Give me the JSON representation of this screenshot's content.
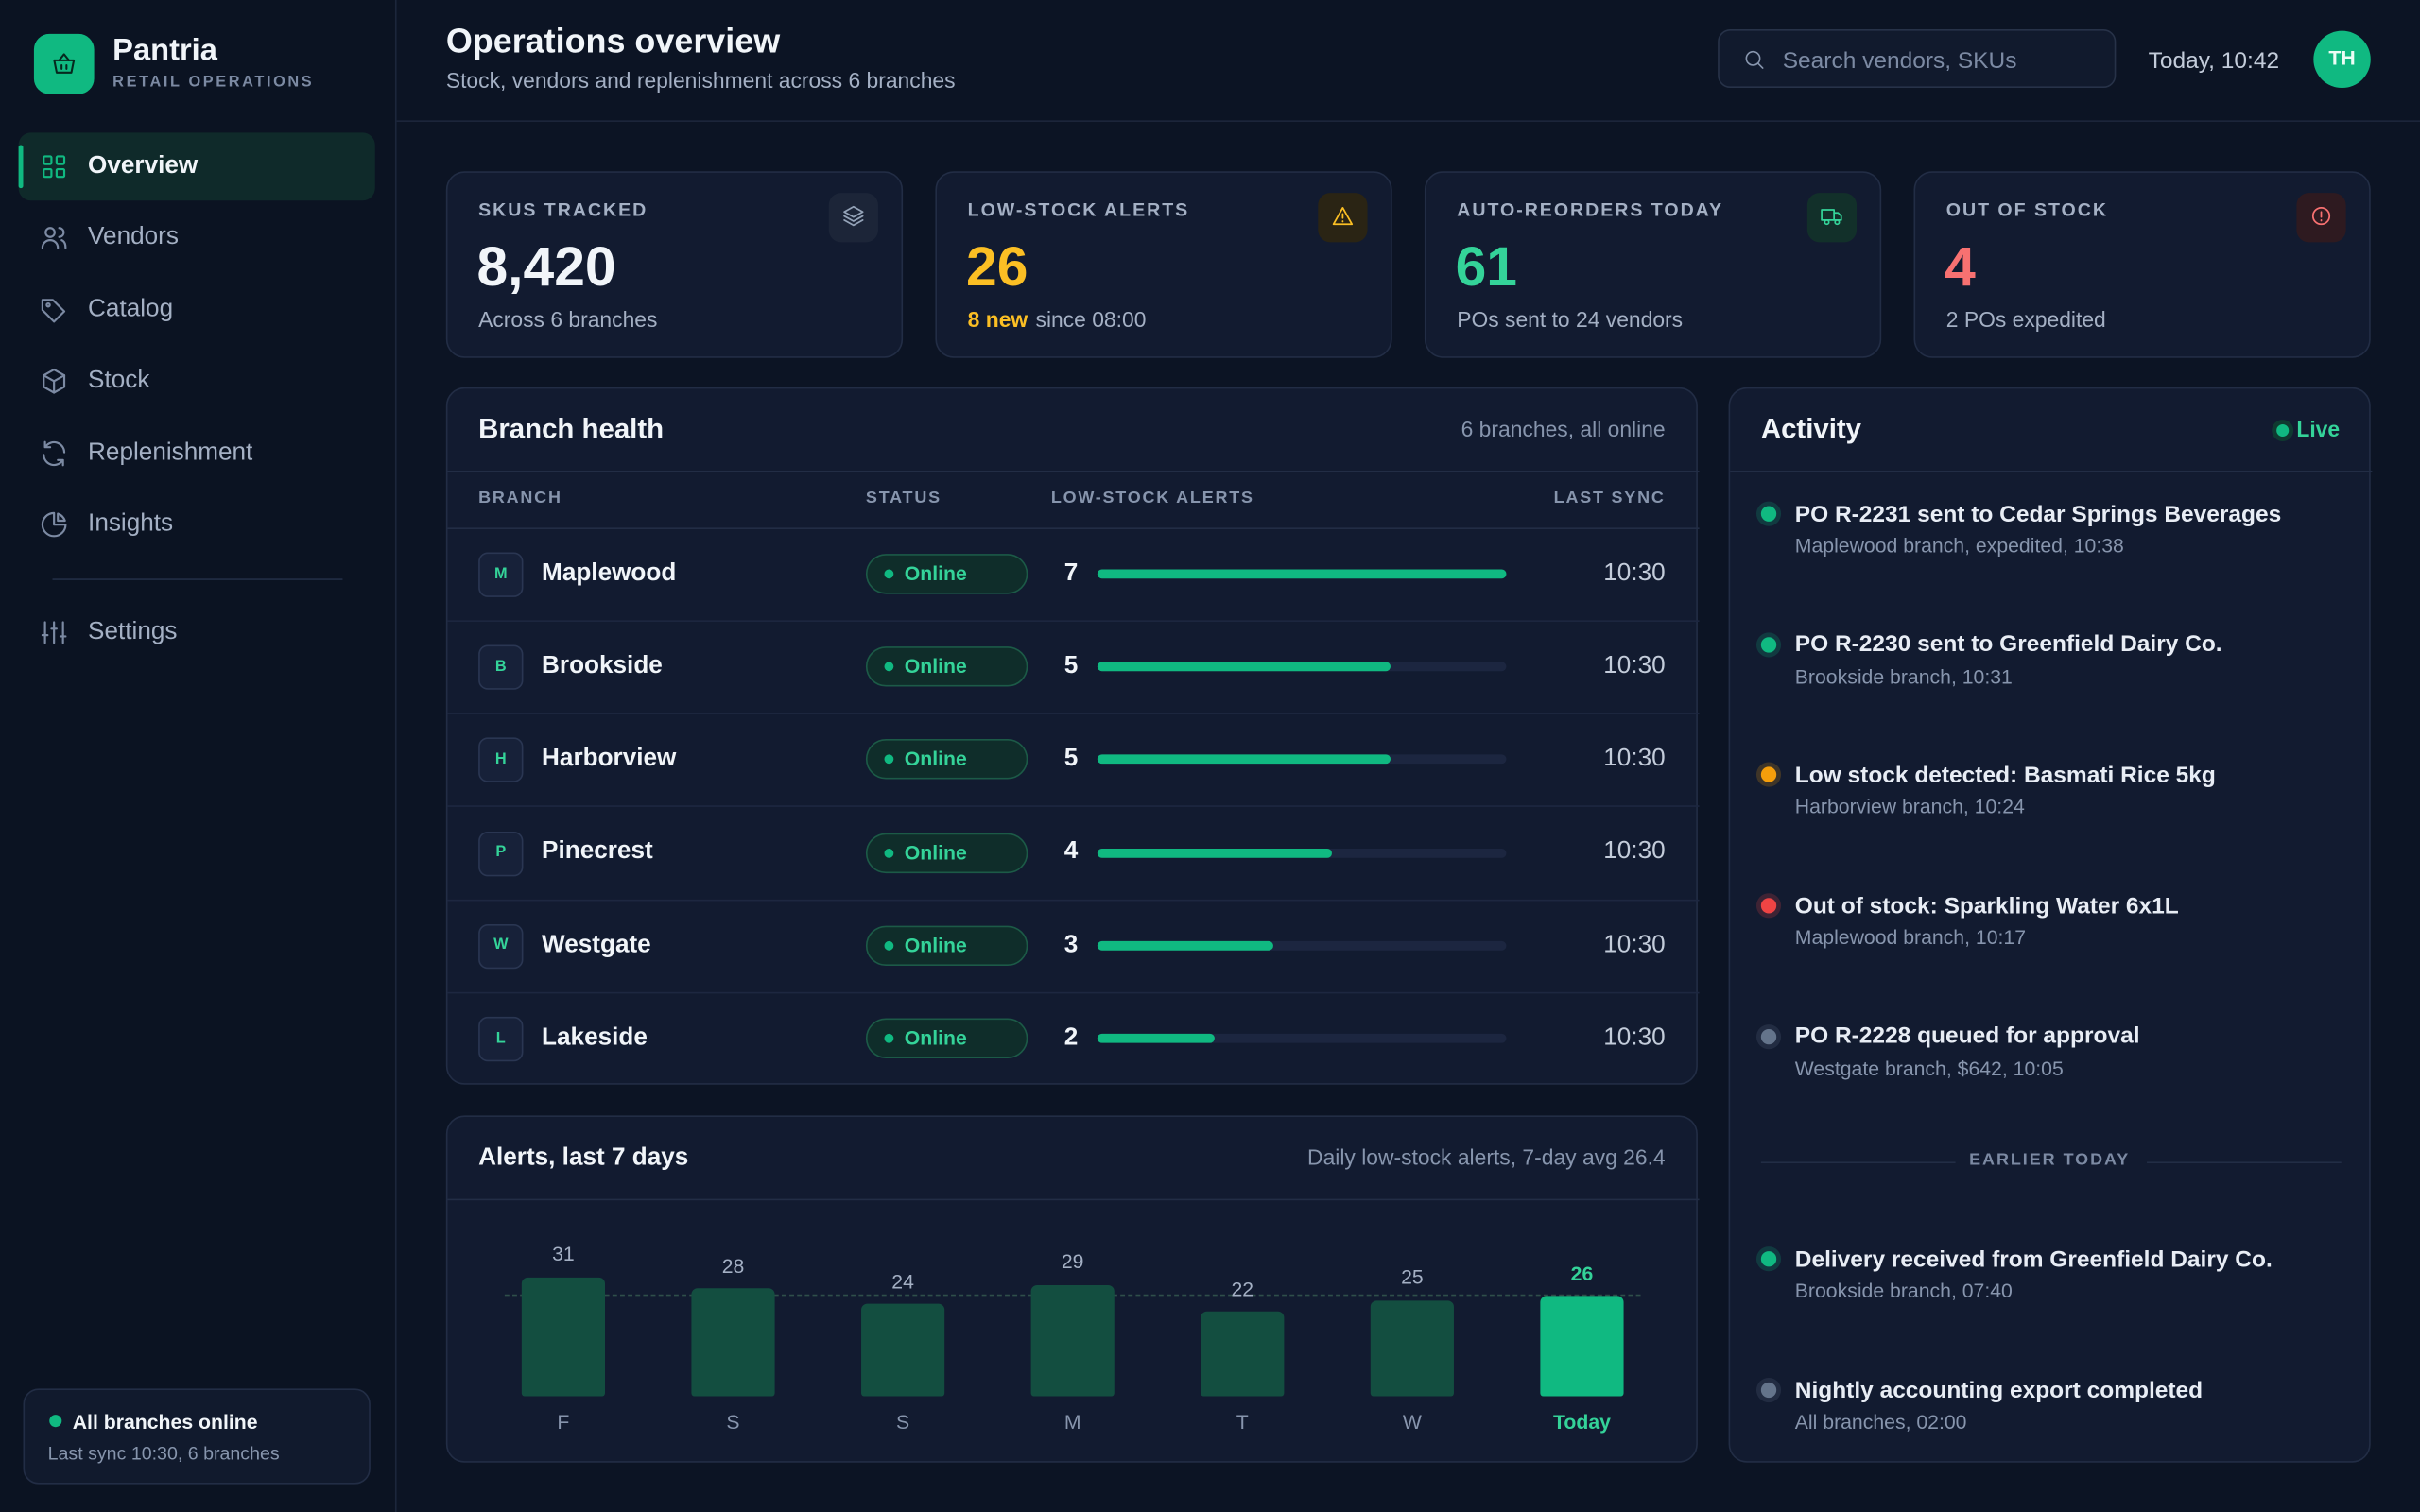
{
  "sidebar": {
    "brand": "Pantria",
    "tagline": "RETAIL OPERATIONS",
    "nav": [
      "Overview",
      "Vendors",
      "Catalog",
      "Stock",
      "Replenishment",
      "Insights"
    ],
    "settings": "Settings",
    "status": {
      "title": "All branches online",
      "detail": "Last sync 10:30, 6 branches"
    }
  },
  "header": {
    "title": "Operations overview",
    "subtitle": "Stock, vendors and replenishment across 6 branches",
    "search_placeholder": "Search vendors, SKUs",
    "clock": "Today, 10:42",
    "avatar": "TH"
  },
  "kpis": [
    {
      "label": "SKUS TRACKED",
      "value": "8,420",
      "detail": "Across 6 branches",
      "color": "#f1f5f9"
    },
    {
      "label": "LOW-STOCK ALERTS",
      "value": "26",
      "highlight": "8 new",
      "detail": "since 08:00",
      "color": "#fbbf24"
    },
    {
      "label": "AUTO-REORDERS TODAY",
      "value": "61",
      "detail": "POs sent to 24 vendors",
      "color": "#34d399"
    },
    {
      "label": "OUT OF STOCK",
      "value": "4",
      "detail": "2 POs expedited",
      "color": "#f87171"
    }
  ],
  "branch_health": {
    "title": "Branch health",
    "note": "6 branches, all online",
    "columns": [
      "BRANCH",
      "STATUS",
      "LOW-STOCK ALERTS",
      "LAST SYNC"
    ],
    "rows": [
      {
        "initial": "M",
        "name": "Maplewood",
        "status": "Online",
        "alerts": 7,
        "last_sync": "10:30"
      },
      {
        "initial": "B",
        "name": "Brookside",
        "status": "Online",
        "alerts": 5,
        "last_sync": "10:30"
      },
      {
        "initial": "H",
        "name": "Harborview",
        "status": "Online",
        "alerts": 5,
        "last_sync": "10:30"
      },
      {
        "initial": "P",
        "name": "Pinecrest",
        "status": "Online",
        "alerts": 4,
        "last_sync": "10:30"
      },
      {
        "initial": "W",
        "name": "Westgate",
        "status": "Online",
        "alerts": 3,
        "last_sync": "10:30"
      },
      {
        "initial": "L",
        "name": "Lakeside",
        "status": "Online",
        "alerts": 2,
        "last_sync": "10:30"
      }
    ]
  },
  "alerts_chart": {
    "title": "Alerts, last 7 days",
    "subtitle": "Daily low-stock alerts, 7-day avg 26.4",
    "categories": [
      "F",
      "S",
      "S",
      "M",
      "T",
      "W",
      "Today"
    ],
    "values": [
      31,
      28,
      24,
      29,
      22,
      25,
      26
    ],
    "average": 26.4
  },
  "activity": {
    "title": "Activity",
    "live": "Live",
    "items": [
      {
        "title": "PO R-2231 sent to Cedar Springs Beverages",
        "detail": "Maplewood branch, expedited, 10:38",
        "tone": "success"
      },
      {
        "title": "PO R-2230 sent to Greenfield Dairy Co.",
        "detail": "Brookside branch, 10:31",
        "tone": "success"
      },
      {
        "title": "Low stock detected: Basmati Rice 5kg",
        "detail": "Harborview branch, 10:24",
        "tone": "warning"
      },
      {
        "title": "Out of stock: Sparkling Water 6x1L",
        "detail": "Maplewood branch, 10:17",
        "tone": "danger"
      },
      {
        "title": "PO R-2228 queued for approval",
        "detail": "Westgate branch, $642, 10:05",
        "tone": "neutral"
      }
    ],
    "divider": "EARLIER TODAY",
    "earlier": [
      {
        "title": "Delivery received from Greenfield Dairy Co.",
        "detail": "Brookside branch, 07:40",
        "tone": "success"
      },
      {
        "title": "Nightly accounting export completed",
        "detail": "All branches, 02:00",
        "tone": "neutral"
      }
    ]
  }
}
